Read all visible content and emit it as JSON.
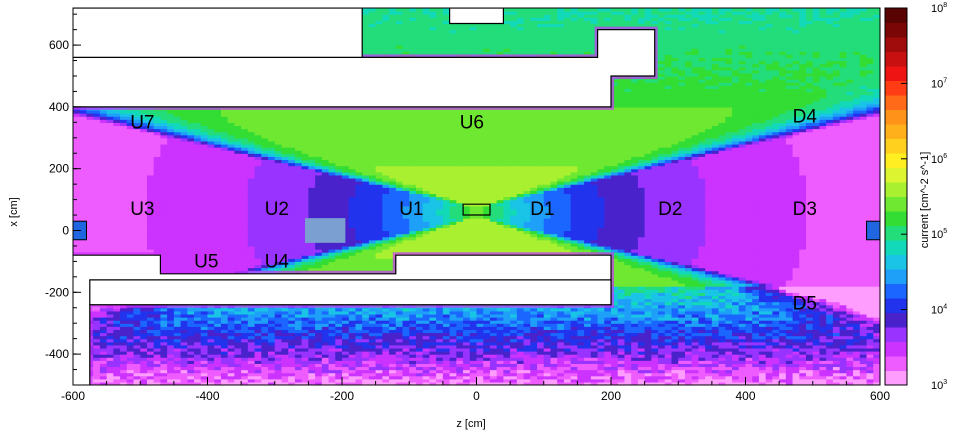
{
  "chart_data": {
    "type": "heatmap",
    "title": "",
    "xlabel": "z [cm]",
    "ylabel": "x [cm]",
    "xlim": [
      -600,
      600
    ],
    "ylim": [
      -500,
      720
    ],
    "x_ticks": [
      "-600",
      "-400",
      "-200",
      "0",
      "200",
      "400",
      "600"
    ],
    "y_ticks": [
      "-400",
      "-200",
      "0",
      "200",
      "400",
      "600"
    ],
    "colorbar": {
      "label": "current [cm^-2 s^-1]",
      "scale": "log",
      "range": [
        1000,
        100000000
      ],
      "ticks": [
        {
          "base": "10",
          "exp": "8"
        },
        {
          "base": "10",
          "exp": "7"
        },
        {
          "base": "10",
          "exp": "6"
        },
        {
          "base": "10",
          "exp": "5"
        },
        {
          "base": "10",
          "exp": "4"
        },
        {
          "base": "10",
          "exp": "3"
        }
      ],
      "colors": [
        "#ff9dff",
        "#ee5cff",
        "#cc33ff",
        "#9933ff",
        "#4a22cc",
        "#2233ee",
        "#1a66ff",
        "#1fa0f8",
        "#19c4e6",
        "#12d9b8",
        "#22dd7a",
        "#33dd33",
        "#6ee830",
        "#a8f030",
        "#dcf530",
        "#ffee22",
        "#ffd01e",
        "#ffb01a",
        "#ff9219",
        "#ff6a18",
        "#ff3c14",
        "#ee1414",
        "#c81010",
        "#a00b0b",
        "#7a0606",
        "#5a0303"
      ]
    },
    "regions": [
      {
        "label": "U7",
        "z": -515,
        "x": 330
      },
      {
        "label": "U6",
        "z": -25,
        "x": 330
      },
      {
        "label": "D4",
        "z": 470,
        "x": 350
      },
      {
        "label": "U3",
        "z": -515,
        "x": 50
      },
      {
        "label": "U2",
        "z": -315,
        "x": 50
      },
      {
        "label": "U1",
        "z": -115,
        "x": 50
      },
      {
        "label": "D1",
        "z": 80,
        "x": 50
      },
      {
        "label": "D2",
        "z": 270,
        "x": 50
      },
      {
        "label": "D3",
        "z": 470,
        "x": 50
      },
      {
        "label": "U5",
        "z": -420,
        "x": -120
      },
      {
        "label": "U4",
        "z": -315,
        "x": -120
      },
      {
        "label": "D5",
        "z": 470,
        "x": -255
      }
    ],
    "peak_position": {
      "z": 0,
      "x": 60
    }
  }
}
